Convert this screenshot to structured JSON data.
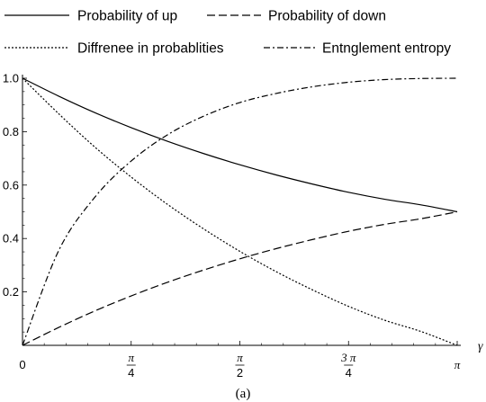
{
  "caption": "(a)",
  "chart_data": {
    "type": "line",
    "xlabel": "γ",
    "ylabel": "",
    "xlim": [
      0,
      3.14159
    ],
    "ylim": [
      0,
      1.0
    ],
    "grid": false,
    "legend_position": "top",
    "x_ticks": [
      {
        "value": 0,
        "label": "0"
      },
      {
        "value": 0.785398,
        "num": "π",
        "den": "4"
      },
      {
        "value": 1.570796,
        "num": "π",
        "den": "2"
      },
      {
        "value": 2.356194,
        "num": "3 π",
        "den": "4"
      },
      {
        "value": 3.141593,
        "label": "π"
      }
    ],
    "y_ticks": [
      {
        "value": 0.2,
        "label": "0.2"
      },
      {
        "value": 0.4,
        "label": "0.4"
      },
      {
        "value": 0.6,
        "label": "0.6"
      },
      {
        "value": 0.8,
        "label": "0.8"
      },
      {
        "value": 1.0,
        "label": "1.0"
      }
    ],
    "x": [
      0,
      0.2618,
      0.5236,
      0.7854,
      1.0472,
      1.309,
      1.5708,
      1.8326,
      2.0944,
      2.3562,
      2.618,
      2.8798,
      3.1416
    ],
    "series": [
      {
        "name": "Probability of up",
        "dash": "solid",
        "values": [
          1.0,
          0.933,
          0.871,
          0.815,
          0.764,
          0.718,
          0.676,
          0.638,
          0.604,
          0.573,
          0.547,
          0.526,
          0.5
        ]
      },
      {
        "name": "Probability of down",
        "dash": "dashed",
        "values": [
          0.0,
          0.067,
          0.129,
          0.185,
          0.236,
          0.282,
          0.324,
          0.362,
          0.396,
          0.427,
          0.453,
          0.474,
          0.5
        ]
      },
      {
        "name": "Diffrenee in probablities",
        "dash": "dotted",
        "values": [
          1.0,
          0.867,
          0.742,
          0.63,
          0.528,
          0.436,
          0.352,
          0.276,
          0.208,
          0.146,
          0.094,
          0.052,
          0.0
        ]
      },
      {
        "name": "Entnglement entropy",
        "dash": "dashdot",
        "values": [
          0.0,
          0.355,
          0.555,
          0.69,
          0.788,
          0.858,
          0.909,
          0.943,
          0.968,
          0.985,
          0.995,
          0.999,
          1.0
        ]
      }
    ]
  }
}
